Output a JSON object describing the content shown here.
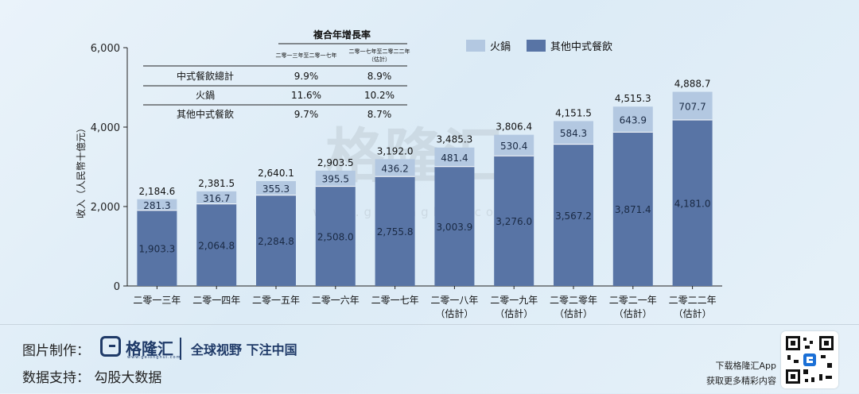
{
  "chart_data": {
    "type": "bar",
    "stacked": true,
    "ylabel": "收入（人民幣十億元）",
    "ylim": [
      0,
      6000
    ],
    "yticks": [
      "0",
      "2,000",
      "4,000",
      "6,000"
    ],
    "categories": [
      {
        "line1": "二零一三年",
        "line2": ""
      },
      {
        "line1": "二零一四年",
        "line2": ""
      },
      {
        "line1": "二零一五年",
        "line2": ""
      },
      {
        "line1": "二零一六年",
        "line2": ""
      },
      {
        "line1": "二零一七年",
        "line2": ""
      },
      {
        "line1": "二零一八年",
        "line2": "（估計）"
      },
      {
        "line1": "二零一九年",
        "line2": "（估計）"
      },
      {
        "line1": "二零二零年",
        "line2": "（估計）"
      },
      {
        "line1": "二零二一年",
        "line2": "（估計）"
      },
      {
        "line1": "二零二二年",
        "line2": "（估計）"
      }
    ],
    "series": [
      {
        "name": "其他中式餐飲",
        "color": "#5874a5",
        "values": [
          1903.3,
          2064.8,
          2284.8,
          2508.0,
          2755.8,
          3003.9,
          3276.0,
          3567.2,
          3871.4,
          4181.0
        ],
        "labels": [
          "1,903.3",
          "2,064.8",
          "2,284.8",
          "2,508.0",
          "2,755.8",
          "3,003.9",
          "3,276.0",
          "3,567.2",
          "3,871.4",
          "4,181.0"
        ]
      },
      {
        "name": "火鍋",
        "color": "#b3c8e1",
        "values": [
          281.3,
          316.7,
          355.3,
          395.5,
          436.2,
          481.4,
          530.4,
          584.3,
          643.9,
          707.7
        ],
        "labels": [
          "281.3",
          "316.7",
          "355.3",
          "395.5",
          "436.2",
          "481.4",
          "530.4",
          "584.3",
          "643.9",
          "707.7"
        ]
      }
    ],
    "totals": [
      "2,184.6",
      "2,381.5",
      "2,640.1",
      "2,903.5",
      "3,192.0",
      "3,485.3",
      "3,806.4",
      "4,151.5",
      "4,515.3",
      "4,888.7"
    ],
    "legend_position": "top-right",
    "cagr_table": {
      "title": "複合年增長率",
      "col1": "二零一三年至二零一七年",
      "col2_line1": "二零一七年至二零二二年",
      "col2_line2": "（估計）",
      "rows": [
        {
          "label": "中式餐飲總計",
          "v1": "9.9%",
          "v2": "8.9%"
        },
        {
          "label": "火鍋",
          "v1": "11.6%",
          "v2": "10.2%"
        },
        {
          "label": "其他中式餐飲",
          "v1": "9.7%",
          "v2": "8.7%"
        }
      ]
    }
  },
  "watermark": {
    "text": "格隆汇",
    "url": "www.gelonghui.com"
  },
  "footer": {
    "credit_label": "图片制作：",
    "logo_text": "格隆汇",
    "logo_sub": "www.gelonghui.com",
    "slogan": "全球视野 下注中国",
    "source_label": "数据支持：",
    "source_value": "勾股大数据",
    "app_line1": "下载格隆汇App",
    "app_line2": "获取更多精彩内容"
  }
}
